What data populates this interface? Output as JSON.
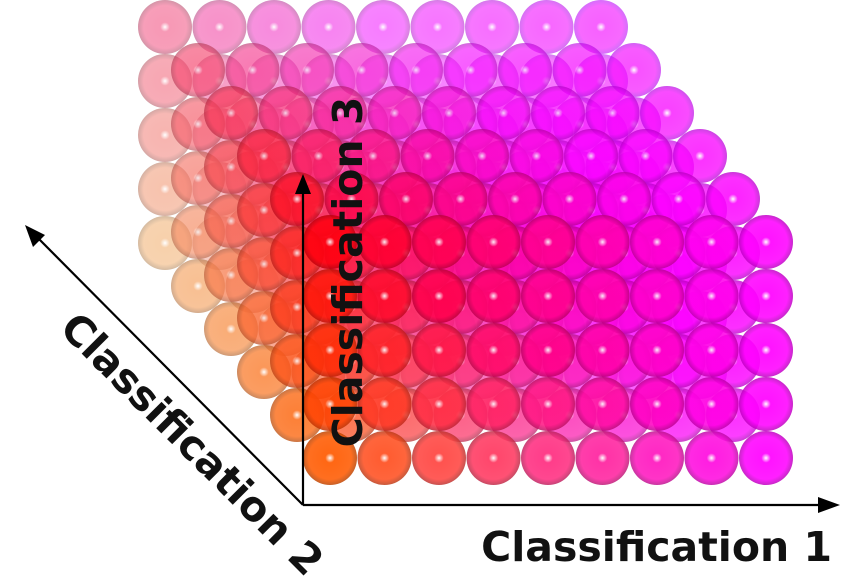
{
  "axes": {
    "x": {
      "label": "Classification 1"
    },
    "y": {
      "label": "Classification 2"
    },
    "z": {
      "label": "Classification 3"
    }
  },
  "grid": {
    "nx": 9,
    "ny": 6,
    "nz": 5
  },
  "colors": {
    "origin": "#ff5a00",
    "x_end": "#ff00ff",
    "y_end": "#f2b478",
    "z_end": "#ff0010",
    "axis": "#000000",
    "highlight": "#ffffff"
  }
}
